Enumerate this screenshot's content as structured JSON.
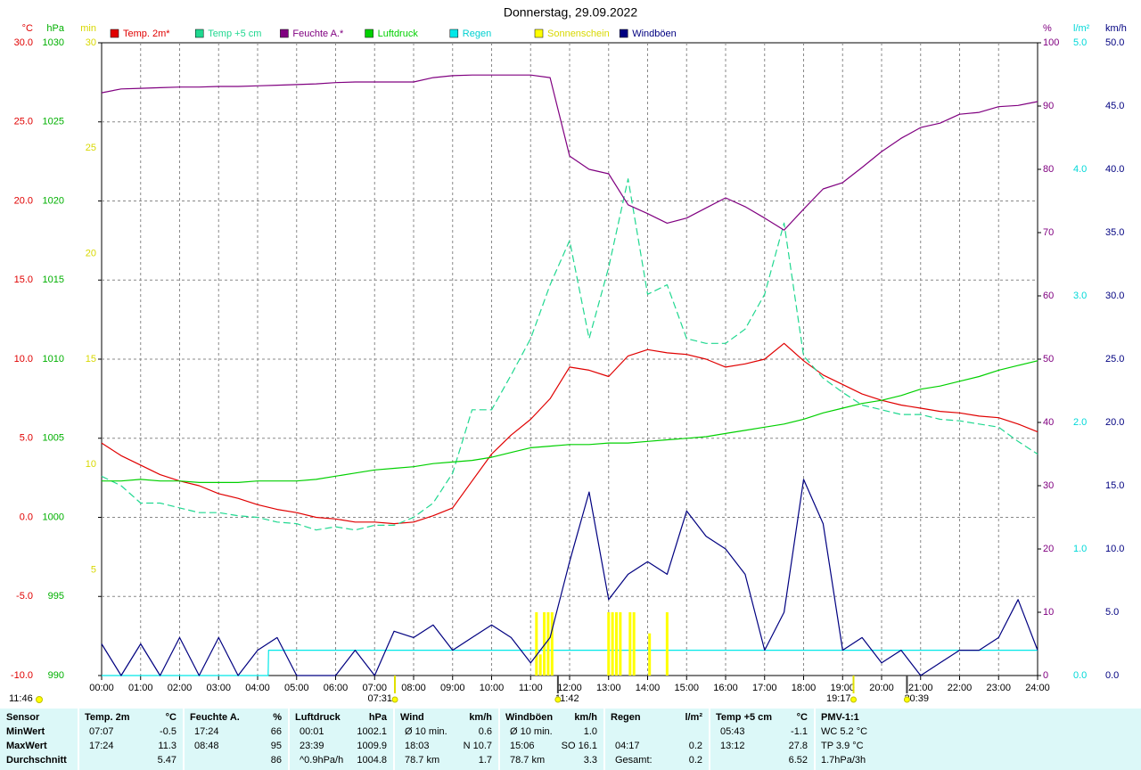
{
  "chart_data": {
    "type": "line",
    "title": "Donnerstag, 29.09.2022",
    "xlim": [
      0,
      24
    ],
    "xticks": [
      {
        "value": 0,
        "label": "00:00"
      },
      {
        "value": 1,
        "label": "01:00"
      },
      {
        "value": 2,
        "label": "02:00"
      },
      {
        "value": 3,
        "label": "03:00"
      },
      {
        "value": 4,
        "label": "04:00"
      },
      {
        "value": 5,
        "label": "05:00"
      },
      {
        "value": 6,
        "label": "06:00"
      },
      {
        "value": 7,
        "label": "07:00"
      },
      {
        "value": 8,
        "label": "08:00"
      },
      {
        "value": 9,
        "label": "09:00"
      },
      {
        "value": 10,
        "label": "10:00"
      },
      {
        "value": 11,
        "label": "11:00"
      },
      {
        "value": 12,
        "label": "12:00"
      },
      {
        "value": 13,
        "label": "13:00"
      },
      {
        "value": 14,
        "label": "14:00"
      },
      {
        "value": 15,
        "label": "15:00"
      },
      {
        "value": 16,
        "label": "16:00"
      },
      {
        "value": 17,
        "label": "17:00"
      },
      {
        "value": 18,
        "label": "18:00"
      },
      {
        "value": 19,
        "label": "19:00"
      },
      {
        "value": 20,
        "label": "20:00"
      },
      {
        "value": 21,
        "label": "21:00"
      },
      {
        "value": 22,
        "label": "22:00"
      },
      {
        "value": 23,
        "label": "23:00"
      },
      {
        "value": 24,
        "label": "24:00"
      }
    ],
    "grid": true,
    "axes": [
      {
        "unit": "°C",
        "color": "#e00000",
        "lim": [
          -10,
          30
        ],
        "ticks": [
          {
            "value": 30,
            "label": "30.0"
          },
          {
            "value": 25,
            "label": "25.0"
          },
          {
            "value": 20,
            "label": "20.0"
          },
          {
            "value": 15,
            "label": "15.0"
          },
          {
            "value": 10,
            "label": "10.0"
          },
          {
            "value": 5,
            "label": "5.0"
          },
          {
            "value": 0,
            "label": "0.0"
          },
          {
            "value": -5,
            "label": "-5.0"
          },
          {
            "value": -10,
            "label": "-10.0"
          }
        ]
      },
      {
        "unit": "hPa",
        "color": "#00b000",
        "lim": [
          990,
          1030
        ],
        "ticks": [
          1030,
          1025,
          1020,
          1015,
          1010,
          1005,
          1000,
          995,
          990
        ]
      },
      {
        "unit": "min",
        "color": "#d8d800",
        "lim": [
          0,
          30
        ],
        "ticks": [
          30,
          25,
          20,
          15,
          10,
          5
        ]
      },
      {
        "unit": "%",
        "color": "#800080",
        "lim": [
          0,
          100
        ],
        "ticks": [
          100,
          90,
          80,
          70,
          60,
          50,
          40,
          30,
          20,
          10,
          0
        ]
      },
      {
        "unit": "l/m²",
        "color": "#00d8d8",
        "lim": [
          0,
          5
        ],
        "ticks": [
          {
            "value": 5,
            "label": "5.0"
          },
          {
            "value": 4,
            "label": "4.0"
          },
          {
            "value": 3,
            "label": "3.0"
          },
          {
            "value": 2,
            "label": "2.0"
          },
          {
            "value": 1,
            "label": "1.0"
          },
          {
            "value": 0,
            "label": "0.0"
          }
        ]
      },
      {
        "unit": "km/h",
        "color": "#000080",
        "lim": [
          0,
          50
        ],
        "ticks": [
          {
            "value": 50,
            "label": "50.0"
          },
          {
            "value": 45,
            "label": "45.0"
          },
          {
            "value": 40,
            "label": "40.0"
          },
          {
            "value": 35,
            "label": "35.0"
          },
          {
            "value": 30,
            "label": "30.0"
          },
          {
            "value": 25,
            "label": "25.0"
          },
          {
            "value": 20,
            "label": "20.0"
          },
          {
            "value": 15,
            "label": "15.0"
          },
          {
            "value": 10,
            "label": "10.0"
          },
          {
            "value": 5,
            "label": "5.0"
          },
          {
            "value": 0,
            "label": "0.0"
          }
        ]
      }
    ],
    "x": [
      0,
      0.5,
      1,
      1.5,
      2,
      2.5,
      3,
      3.5,
      4,
      4.5,
      5,
      5.5,
      6,
      6.5,
      7,
      7.5,
      8,
      8.5,
      9,
      9.5,
      10,
      10.5,
      11,
      11.5,
      12,
      12.5,
      13,
      13.5,
      14,
      14.5,
      15,
      15.5,
      16,
      16.5,
      17,
      17.5,
      18,
      18.5,
      19,
      19.5,
      20,
      20.5,
      21,
      21.5,
      22,
      22.5,
      23,
      23.5,
      24
    ],
    "series": [
      {
        "name": "Temp. 2m*",
        "color": "#e00000",
        "axis": 0,
        "values": [
          4.7,
          3.9,
          3.3,
          2.7,
          2.3,
          2.0,
          1.5,
          1.2,
          0.8,
          0.5,
          0.3,
          0.0,
          -0.1,
          -0.3,
          -0.3,
          -0.4,
          -0.3,
          0.1,
          0.6,
          2.3,
          4.0,
          5.2,
          6.2,
          7.5,
          9.5,
          9.3,
          8.9,
          10.2,
          10.6,
          10.4,
          10.3,
          10.0,
          9.5,
          9.7,
          10.0,
          11.0,
          9.9,
          9.0,
          8.4,
          7.8,
          7.4,
          7.1,
          6.9,
          6.7,
          6.6,
          6.4,
          6.3,
          5.9,
          5.4
        ]
      },
      {
        "name": "Temp +5 cm",
        "color": "#20d890",
        "axis": 0,
        "dashed": true,
        "values": [
          2.6,
          2.0,
          0.9,
          0.9,
          0.6,
          0.3,
          0.3,
          0.1,
          0.0,
          -0.3,
          -0.4,
          -0.8,
          -0.6,
          -0.8,
          -0.5,
          -0.5,
          0.0,
          0.9,
          2.8,
          6.8,
          6.8,
          9.0,
          11.3,
          14.7,
          17.5,
          11.3,
          15.8,
          21.4,
          14.1,
          14.7,
          11.3,
          11.0,
          11.0,
          11.9,
          14.1,
          18.6,
          10.2,
          8.8,
          7.9,
          7.1,
          6.8,
          6.5,
          6.5,
          6.2,
          6.1,
          5.9,
          5.7,
          4.8,
          4.0
        ]
      },
      {
        "name": "Feuchte A.*",
        "color": "#800080",
        "axis": 3,
        "values": [
          92.1,
          92.7,
          92.8,
          92.9,
          93.0,
          93.0,
          93.1,
          93.1,
          93.2,
          93.3,
          93.4,
          93.5,
          93.7,
          93.8,
          93.8,
          93.8,
          93.8,
          94.5,
          94.8,
          94.9,
          94.9,
          94.9,
          94.9,
          94.5,
          82.1,
          80.0,
          79.3,
          74.4,
          73.0,
          71.5,
          72.3,
          73.9,
          75.5,
          74.1,
          72.3,
          70.4,
          73.7,
          76.9,
          77.9,
          80.3,
          82.8,
          84.9,
          86.6,
          87.3,
          88.7,
          89.0,
          89.9,
          90.1,
          90.7
        ]
      },
      {
        "name": "Luftdruck",
        "color": "#00d000",
        "axis": 1,
        "values": [
          1002.3,
          1002.3,
          1002.4,
          1002.3,
          1002.3,
          1002.2,
          1002.2,
          1002.2,
          1002.3,
          1002.3,
          1002.3,
          1002.4,
          1002.6,
          1002.8,
          1003.0,
          1003.1,
          1003.2,
          1003.4,
          1003.5,
          1003.6,
          1003.8,
          1004.1,
          1004.4,
          1004.5,
          1004.6,
          1004.6,
          1004.7,
          1004.7,
          1004.8,
          1004.9,
          1005.0,
          1005.1,
          1005.3,
          1005.5,
          1005.7,
          1005.9,
          1006.2,
          1006.6,
          1006.9,
          1007.2,
          1007.4,
          1007.7,
          1008.1,
          1008.3,
          1008.6,
          1008.9,
          1009.3,
          1009.6,
          1009.9
        ]
      },
      {
        "name": "Regen",
        "color": "#00e8e8",
        "axis": 4,
        "x": [
          0,
          4.27,
          4.28,
          24
        ],
        "values": [
          0,
          0,
          0.2,
          0.2
        ]
      },
      {
        "name": "Sonnenschein",
        "color": "#ffff00",
        "axis": 2,
        "kind": "bar",
        "x": [
          11.15,
          11.25,
          11.35,
          11.45,
          11.55,
          13.0,
          13.1,
          13.2,
          13.3,
          13.55,
          13.65,
          14.05,
          14.5
        ],
        "values": [
          3,
          1,
          3,
          3,
          3,
          3,
          3,
          3,
          3,
          3,
          3,
          2,
          3
        ]
      },
      {
        "name": "Windböen",
        "color": "#000080",
        "axis": 5,
        "values": [
          2.5,
          0,
          2.5,
          0,
          3,
          0,
          3,
          0,
          2,
          3,
          0,
          0,
          0,
          2,
          0,
          3.5,
          3,
          4,
          2,
          3,
          4,
          3,
          1,
          3,
          9,
          14.5,
          6,
          8,
          9,
          8,
          13,
          11,
          10,
          8,
          2,
          5,
          15.5,
          12,
          2,
          3,
          1,
          2,
          0,
          1,
          2,
          2,
          3,
          6,
          2
        ]
      }
    ],
    "annotations": [
      {
        "label": "11:46"
      },
      {
        "label": "07:31",
        "x": 7.52,
        "color": "#e0e000"
      },
      {
        "label": "11:42",
        "x": 11.7,
        "color": "#404040"
      },
      {
        "label": "19:17",
        "x": 19.28,
        "color": "#e0e000"
      },
      {
        "label": "20:39",
        "x": 20.65,
        "color": "#404040"
      }
    ]
  },
  "stats_table": {
    "columns": [
      {
        "header": "Sensor",
        "rows": [
          "MinWert",
          "MaxWert",
          "Durchschnitt"
        ]
      },
      {
        "header": "Temp. 2m",
        "unit": "°C",
        "rows": [
          {
            "time": "07:07",
            "value": "-0.5"
          },
          {
            "time": "17:24",
            "value": "11.3"
          },
          {
            "value": "5.47"
          }
        ]
      },
      {
        "header": "Feuchte A.",
        "unit": "%",
        "rows": [
          {
            "time": "17:24",
            "value": "66"
          },
          {
            "time": "08:48",
            "value": "95"
          },
          {
            "value": "86"
          }
        ]
      },
      {
        "header": "Luftdruck",
        "unit": "hPa",
        "rows": [
          {
            "time": "00:01",
            "value": "1002.1"
          },
          {
            "time": "23:39",
            "value": "1009.9"
          },
          {
            "time": "^0.9hPa/h",
            "value": "1004.8"
          }
        ]
      },
      {
        "header": "Wind",
        "unit": "km/h",
        "rows": [
          {
            "time": "Ø 10 min.",
            "value": "0.6"
          },
          {
            "time": "18:03",
            "value": "N 10.7"
          },
          {
            "time": "78.7 km",
            "value": "1.7"
          }
        ]
      },
      {
        "header": "Windböen",
        "unit": "km/h",
        "rows": [
          {
            "time": "Ø 10 min.",
            "value": "1.0"
          },
          {
            "time": "15:06",
            "value": "SO 16.1"
          },
          {
            "time": "78.7 km",
            "value": "3.3"
          }
        ]
      },
      {
        "header": "Regen",
        "unit": "l/m²",
        "rows": [
          null,
          {
            "time": "04:17",
            "value": "0.2"
          },
          {
            "time": "Gesamt:",
            "value": "0.2"
          }
        ]
      },
      {
        "header": "Temp +5 cm",
        "unit": "°C",
        "rows": [
          {
            "time": "05:43",
            "value": "-1.1"
          },
          {
            "time": "13:12",
            "value": "27.8"
          },
          {
            "value": "6.52"
          }
        ]
      },
      {
        "header": "PMV-1:1",
        "rows": [
          "WC 5.2 °C",
          "TP 3.9 °C",
          "1.7hPa/3h"
        ]
      }
    ]
  }
}
